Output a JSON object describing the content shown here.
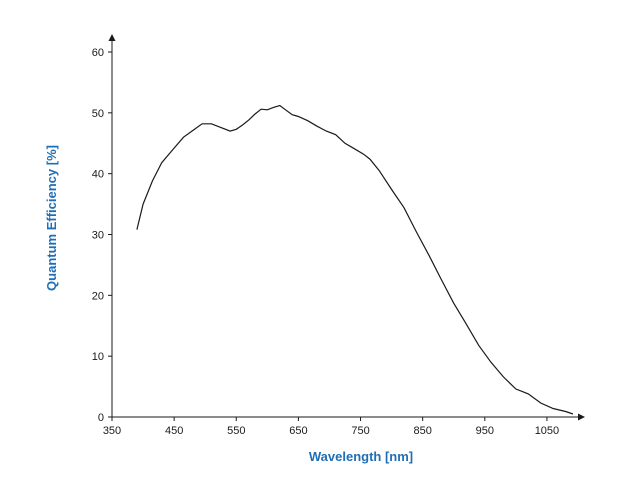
{
  "colors": {
    "axis": "#1a1a1a",
    "line": "#1a1a1a",
    "axis_title": "#1f6fb5"
  },
  "chart_data": {
    "type": "line",
    "xlabel": "Wavelength [nm]",
    "ylabel": "Quantum Efficiency [%]",
    "xlim": [
      350,
      1100
    ],
    "ylim": [
      0,
      60
    ],
    "xticks": [
      350,
      450,
      550,
      650,
      750,
      850,
      950,
      1050
    ],
    "yticks": [
      0,
      10,
      20,
      30,
      40,
      50,
      60
    ],
    "grid": false,
    "series": [
      {
        "x": [
          390,
          400,
          415,
          430,
          450,
          465,
          480,
          495,
          510,
          525,
          540,
          550,
          560,
          570,
          580,
          590,
          600,
          610,
          620,
          628,
          640,
          650,
          665,
          680,
          695,
          710,
          725,
          740,
          755,
          765,
          780,
          800,
          820,
          840,
          860,
          880,
          900,
          920,
          940,
          960,
          980,
          1000,
          1010,
          1020,
          1040,
          1060,
          1080,
          1092
        ],
        "y": [
          30.8,
          35,
          38.8,
          41.8,
          44.2,
          46.0,
          47.1,
          48.2,
          48.2,
          47.6,
          47.0,
          47.3,
          48.0,
          48.8,
          49.8,
          50.6,
          50.5,
          50.9,
          51.2,
          50.6,
          49.7,
          49.4,
          48.7,
          47.8,
          47.0,
          46.4,
          45.0,
          44.1,
          43.2,
          42.4,
          40.5,
          37.4,
          34.4,
          30.4,
          26.6,
          22.6,
          18.7,
          15.3,
          11.8,
          9.0,
          6.6,
          4.6,
          4.2,
          3.8,
          2.3,
          1.4,
          0.9,
          0.5
        ]
      }
    ]
  }
}
